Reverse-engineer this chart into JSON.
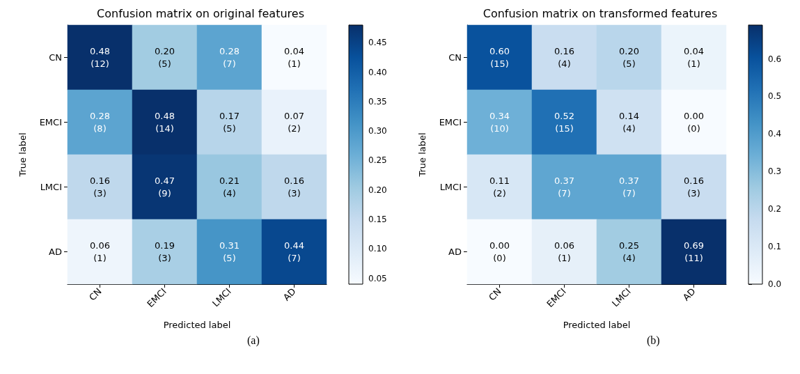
{
  "chart_data": [
    {
      "type": "heatmap",
      "title": "Confusion matrix on original features",
      "xlabel": "Predicted label",
      "ylabel": "True label",
      "categories": [
        "CN",
        "EMCI",
        "LMCI",
        "AD"
      ],
      "y_categories": [
        "CN",
        "EMCI",
        "LMCI",
        "AD"
      ],
      "cells": [
        [
          0.48,
          0.2,
          0.28,
          0.04
        ],
        [
          0.28,
          0.48,
          0.17,
          0.07
        ],
        [
          0.16,
          0.47,
          0.21,
          0.16
        ],
        [
          0.06,
          0.19,
          0.31,
          0.44
        ]
      ],
      "cell_labels": [
        [
          "0.48\n(12)",
          "0.20\n(5)",
          "0.28\n(7)",
          "0.04\n(1)"
        ],
        [
          "0.28\n(8)",
          "0.48\n(14)",
          "0.17\n(5)",
          "0.07\n(2)"
        ],
        [
          "0.16\n(3)",
          "0.47\n(9)",
          "0.21\n(4)",
          "0.16\n(3)"
        ],
        [
          "0.06\n(1)",
          "0.19\n(3)",
          "0.31\n(5)",
          "0.44\n(7)"
        ]
      ],
      "clim": [
        0.04,
        0.48
      ],
      "cticks": [
        0.05,
        {
          "value": 0.1,
          "label": "0.10"
        },
        0.15,
        {
          "value": 0.2,
          "label": "0.20"
        },
        0.25,
        {
          "value": 0.3,
          "label": "0.30"
        },
        0.35,
        {
          "value": 0.4,
          "label": "0.40"
        },
        0.45
      ],
      "annotations": [
        "(a)"
      ]
    },
    {
      "type": "heatmap",
      "title": "Confusion matrix on transformed features",
      "xlabel": "Predicted label",
      "ylabel": "True label",
      "categories": [
        "CN",
        "EMCI",
        "LMCI",
        "AD"
      ],
      "y_categories": [
        "CN",
        "EMCI",
        "LMCI",
        "AD"
      ],
      "cells": [
        [
          0.6,
          0.16,
          0.2,
          0.04
        ],
        [
          0.34,
          0.52,
          0.14,
          0.0
        ],
        [
          0.11,
          0.37,
          0.37,
          0.16
        ],
        [
          0.0,
          0.06,
          0.25,
          0.69
        ]
      ],
      "cell_labels": [
        [
          "0.60\n(15)",
          "0.16\n(4)",
          "0.20\n(5)",
          "0.04\n(1)"
        ],
        [
          "0.34\n(10)",
          "0.52\n(15)",
          "0.14\n(4)",
          "0.00\n(0)"
        ],
        [
          "0.11\n(2)",
          "0.37\n(7)",
          "0.37\n(7)",
          "0.16\n(3)"
        ],
        [
          "0.00\n(0)",
          "0.06\n(1)",
          "0.25\n(4)",
          "0.69\n(11)"
        ]
      ],
      "clim": [
        0,
        0.69
      ],
      "cticks": [
        {
          "value": 0,
          "label": "0.0"
        },
        0.1,
        0.2,
        0.3,
        0.4,
        0.5,
        0.6
      ],
      "annotations": [
        "(b)"
      ]
    }
  ]
}
